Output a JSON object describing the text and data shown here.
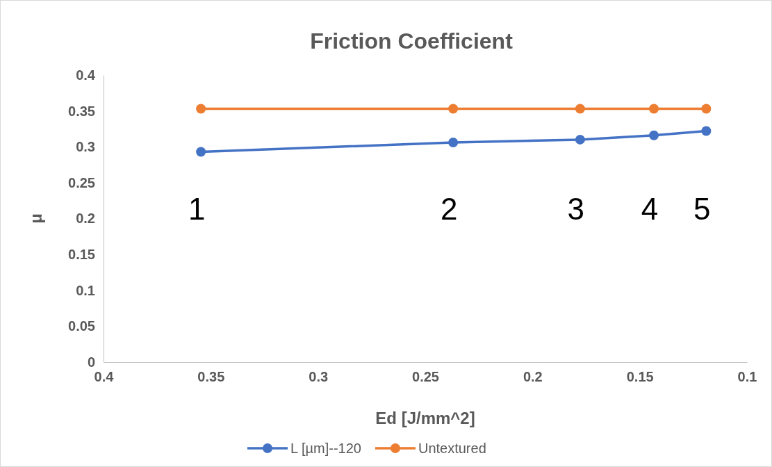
{
  "chart_data": {
    "type": "line",
    "title": "Friction Coefficient",
    "xlabel": "Ed [J/mm^2]",
    "ylabel": "μ",
    "x": [
      0.3546,
      0.237,
      0.1778,
      0.1434,
      0.119
    ],
    "series": [
      {
        "name": "L [µm]--120",
        "color": "#4472c4",
        "values": [
          0.293,
          0.306,
          0.31,
          0.316,
          0.322
        ]
      },
      {
        "name": "Untextured",
        "color": "#ed7d31",
        "values": [
          0.353,
          0.353,
          0.353,
          0.353,
          0.353
        ]
      }
    ],
    "xlim": [
      0.4,
      0.1
    ],
    "xticks": [
      0.4,
      0.35,
      0.3,
      0.25,
      0.2,
      0.15,
      0.1
    ],
    "ylim": [
      0,
      0.4
    ],
    "yticks": [
      0,
      0.05,
      0.1,
      0.15,
      0.2,
      0.25,
      0.3,
      0.35,
      0.4
    ],
    "annotations": [
      "1",
      "2",
      "3",
      "4",
      "5"
    ],
    "grid": false,
    "legend": "bottom",
    "marker": "circle",
    "line_style": "solid"
  }
}
